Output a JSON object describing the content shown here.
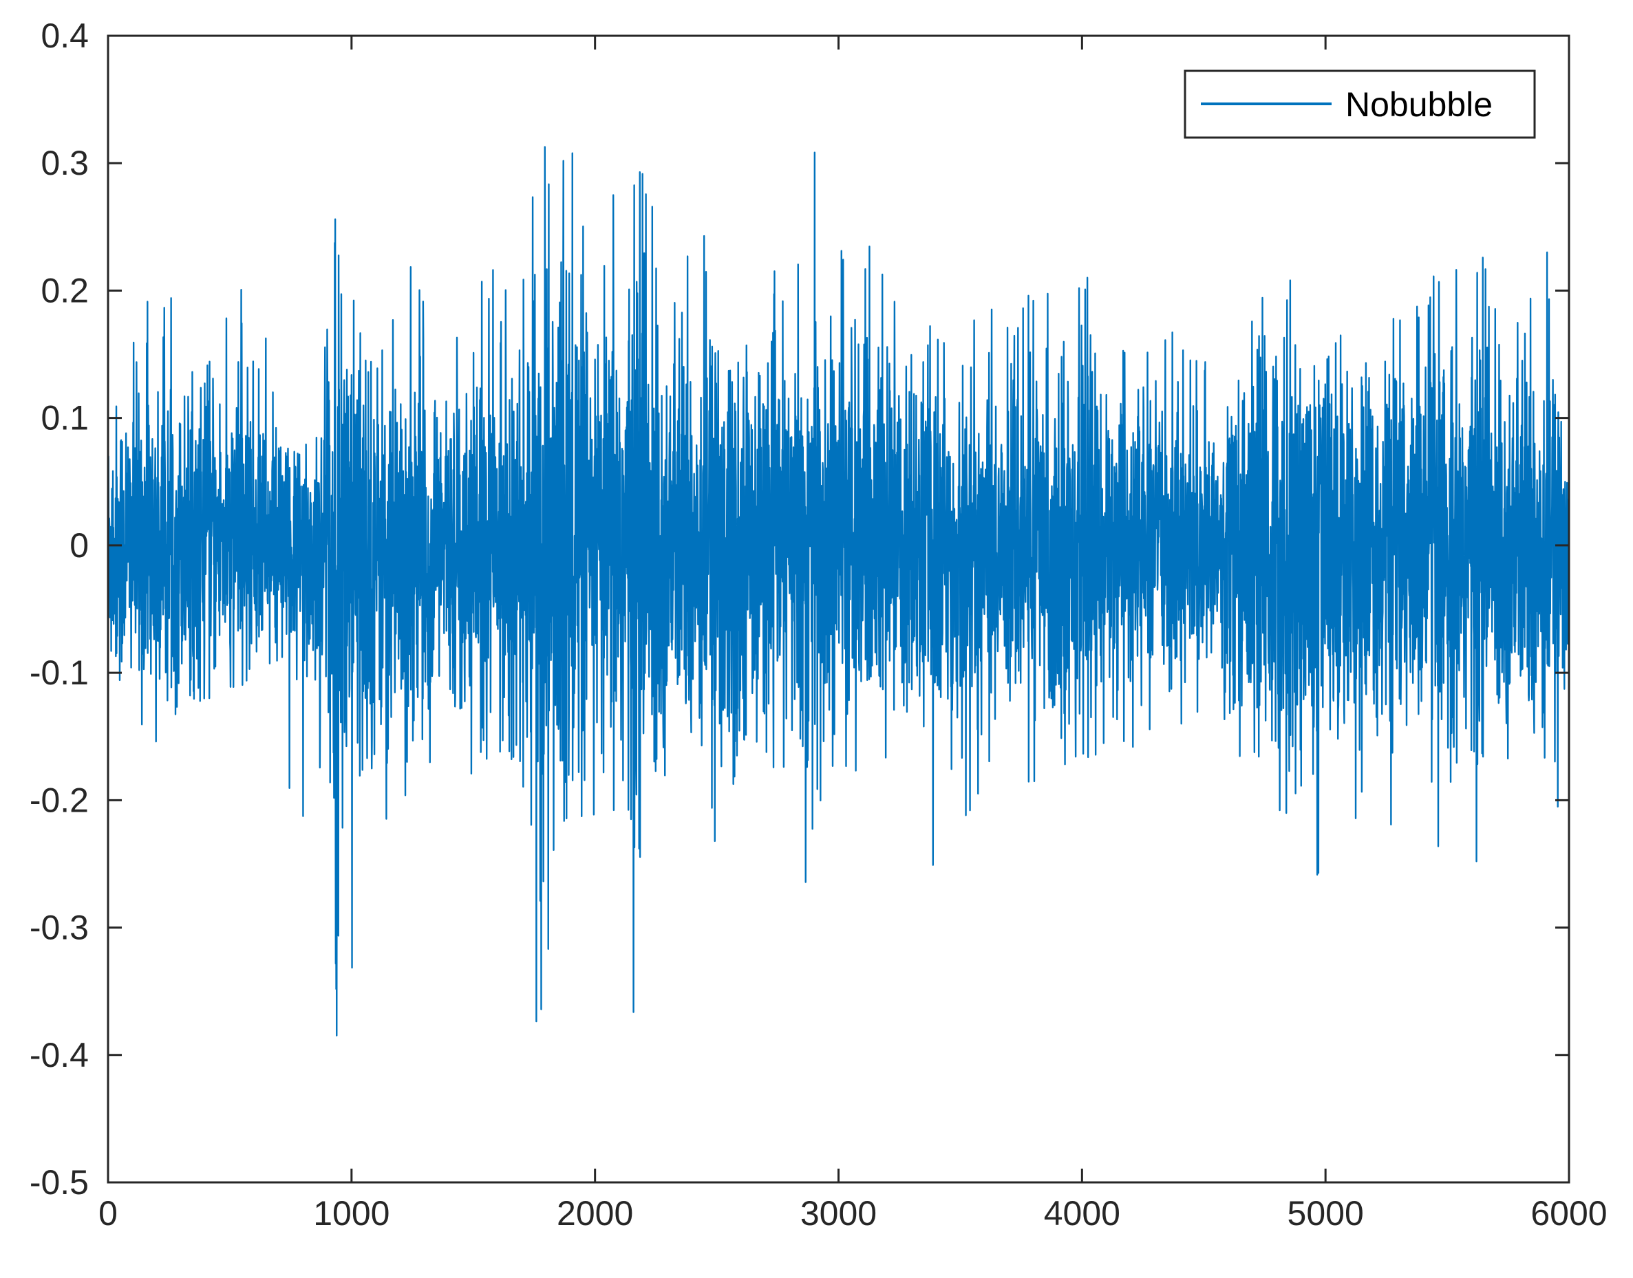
{
  "chart_data": {
    "type": "line",
    "xlim": [
      0,
      6000
    ],
    "ylim": [
      -0.5,
      0.4
    ],
    "x_ticks": [
      0,
      1000,
      2000,
      3000,
      4000,
      5000,
      6000
    ],
    "x_tick_labels": [
      "0",
      "1000",
      "2000",
      "3000",
      "4000",
      "5000",
      "6000"
    ],
    "y_ticks": [
      -0.5,
      -0.4,
      -0.3,
      -0.2,
      -0.1,
      0,
      0.1,
      0.2,
      0.3,
      0.4
    ],
    "y_tick_labels": [
      "-0.5",
      "-0.4",
      "-0.3",
      "-0.2",
      "-0.1",
      "0",
      "0.1",
      "0.2",
      "0.3",
      "0.4"
    ],
    "grid": false,
    "legend_position": "top-right",
    "series": [
      {
        "name": "Nobubble",
        "color": "#0072BD",
        "num_points": 6000,
        "envelope": {
          "x": [
            0,
            100,
            200,
            300,
            400,
            500,
            600,
            650,
            700,
            800,
            900,
            930,
            1000,
            1100,
            1200,
            1300,
            1400,
            1500,
            1600,
            1700,
            1760,
            1800,
            1900,
            2000,
            2100,
            2200,
            2250,
            2300,
            2400,
            2500,
            2540,
            2600,
            2700,
            2800,
            2900,
            3000,
            3100,
            3200,
            3300,
            3400,
            3500,
            3600,
            3700,
            3800,
            3900,
            4000,
            4100,
            4200,
            4300,
            4400,
            4500,
            4550,
            4600,
            4700,
            4800,
            4900,
            5000,
            5100,
            5200,
            5300,
            5400,
            5500,
            5600,
            5700,
            5800,
            5900,
            6000
          ],
          "upper": [
            0.14,
            0.21,
            0.2,
            0.19,
            0.22,
            0.19,
            0.23,
            0.17,
            0.08,
            0.07,
            0.17,
            0.28,
            0.26,
            0.18,
            0.24,
            0.19,
            0.16,
            0.2,
            0.22,
            0.2,
            0.3,
            0.33,
            0.32,
            0.2,
            0.3,
            0.31,
            0.26,
            0.22,
            0.26,
            0.31,
            0.34,
            0.27,
            0.23,
            0.19,
            0.31,
            0.23,
            0.24,
            0.22,
            0.18,
            0.17,
            0.19,
            0.19,
            0.18,
            0.2,
            0.2,
            0.22,
            0.19,
            0.18,
            0.16,
            0.18,
            0.18,
            0.12,
            0.2,
            0.21,
            0.23,
            0.19,
            0.23,
            0.18,
            0.18,
            0.19,
            0.22,
            0.2,
            0.27,
            0.2,
            0.19,
            0.25,
            0.14
          ],
          "lower": [
            -0.16,
            -0.13,
            -0.17,
            -0.13,
            -0.12,
            -0.12,
            -0.1,
            -0.1,
            -0.19,
            -0.23,
            -0.2,
            -0.4,
            -0.37,
            -0.23,
            -0.24,
            -0.19,
            -0.17,
            -0.18,
            -0.17,
            -0.19,
            -0.41,
            -0.34,
            -0.36,
            -0.22,
            -0.32,
            -0.4,
            -0.35,
            -0.18,
            -0.22,
            -0.24,
            -0.22,
            -0.15,
            -0.17,
            -0.19,
            -0.33,
            -0.2,
            -0.19,
            -0.18,
            -0.2,
            -0.27,
            -0.22,
            -0.19,
            -0.18,
            -0.2,
            -0.21,
            -0.17,
            -0.16,
            -0.16,
            -0.14,
            -0.14,
            -0.14,
            -0.05,
            -0.18,
            -0.22,
            -0.29,
            -0.31,
            -0.24,
            -0.24,
            -0.24,
            -0.25,
            -0.25,
            -0.24,
            -0.25,
            -0.24,
            -0.2,
            -0.27,
            -0.16
          ]
        }
      }
    ]
  }
}
